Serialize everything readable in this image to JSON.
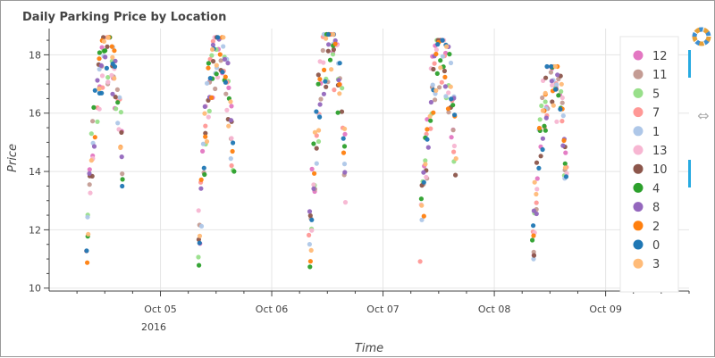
{
  "chart_data": {
    "type": "scatter",
    "title": "Daily Parking Price by Location",
    "xlabel": "Time",
    "ylabel": "Price",
    "x_unit_note": "2016",
    "x_ticks": [
      "Oct 05",
      "Oct 06",
      "Oct 07",
      "Oct 08",
      "Oct 09"
    ],
    "y_ticks": [
      10,
      12,
      14,
      16,
      18
    ],
    "ylim": [
      9.9,
      18.9
    ],
    "xlim": [
      "2016-10-04 00:00",
      "2016-10-09 18:00"
    ],
    "legend_position": "right",
    "grid": true,
    "day_pattern": {
      "days": [
        "2016-10-04",
        "2016-10-05",
        "2016-10-06",
        "2016-10-07",
        "2016-10-08"
      ],
      "start_hour": 8,
      "end_hour": 16,
      "peak_hour": 12.5,
      "peak_price": [
        18.6,
        18.6,
        18.7,
        18.5,
        17.6
      ],
      "low_price": [
        10.8,
        10.4,
        10.6,
        10.9,
        10.3
      ]
    },
    "series": [
      {
        "name": "12",
        "color": "#e377c2"
      },
      {
        "name": "11",
        "color": "#c49c94"
      },
      {
        "name": "5",
        "color": "#98df8a"
      },
      {
        "name": "7",
        "color": "#ff9896"
      },
      {
        "name": "1",
        "color": "#aec7e8"
      },
      {
        "name": "13",
        "color": "#f7b6d2"
      },
      {
        "name": "10",
        "color": "#8c564b"
      },
      {
        "name": "4",
        "color": "#2ca02c"
      },
      {
        "name": "8",
        "color": "#9467bd"
      },
      {
        "name": "2",
        "color": "#ff7f0e"
      },
      {
        "name": "0",
        "color": "#1f77b4"
      },
      {
        "name": "3",
        "color": "#ffbb78"
      }
    ]
  }
}
